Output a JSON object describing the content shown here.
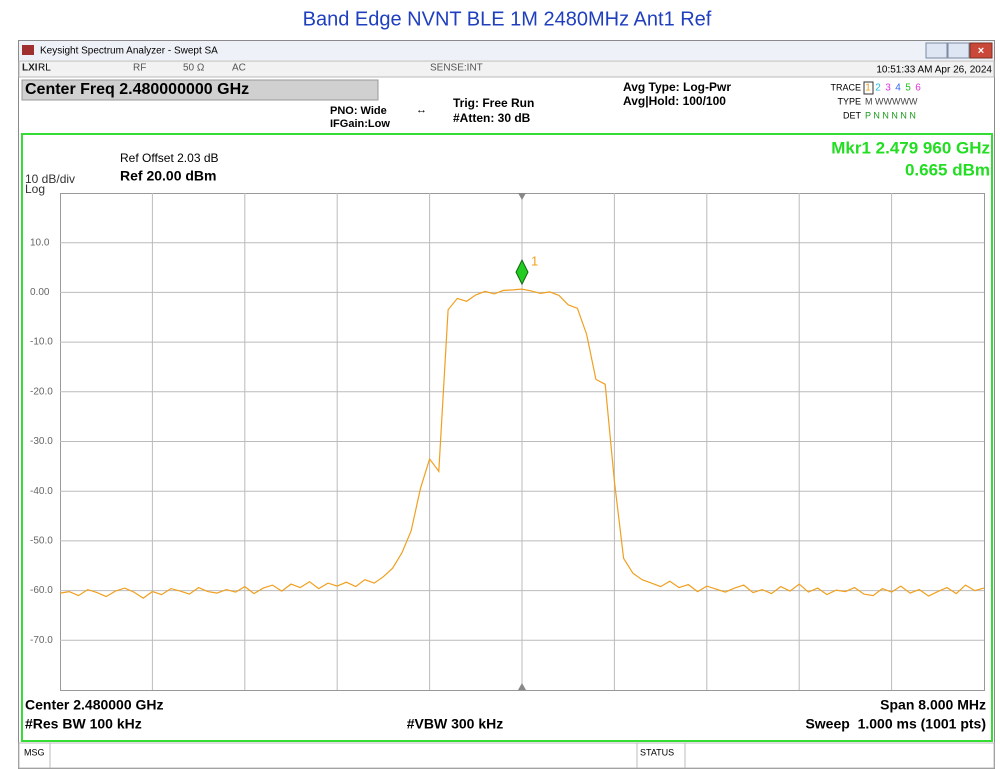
{
  "title": "Band Edge NVNT BLE 1M 2480MHz Ant1 Ref",
  "window_title": "Keysight Spectrum Analyzer - Swept SA",
  "status_row": {
    "rl": "RL",
    "rf": "RF",
    "impedance": "50 Ω",
    "coupling": "AC",
    "sense": "SENSE:INT",
    "time": "10:51:33 AM Apr 26, 2024"
  },
  "header": {
    "center_freq": "Center Freq 2.480000000 GHz",
    "pno": "PNO: Wide",
    "ifgain": "IFGain:Low",
    "trig": "Trig: Free Run",
    "atten": "#Atten: 30 dB",
    "avg_type": "Avg Type: Log-Pwr",
    "avg_hold": "Avg|Hold: 100/100",
    "trace_label": "TRACE",
    "trace_numbers": [
      "1",
      "2",
      "3",
      "4",
      "5",
      "6"
    ],
    "type_label": "TYPE",
    "type_value": "M WWWWW",
    "det_label": "DET",
    "det_value": "P N N N N N"
  },
  "screen": {
    "ref_offset": "Ref Offset 2.03 dB",
    "scale": "10 dB/div",
    "ref_level": "Ref 20.00 dBm",
    "log": "Log",
    "marker_freq": "Mkr1 2.479 960 GHz",
    "marker_level": "0.665 dBm",
    "marker_label": "1"
  },
  "trace": {
    "color": "#f0a020",
    "ylim": [
      -80,
      20
    ],
    "yticks": [
      {
        "value": 10,
        "label": "10.0"
      },
      {
        "value": 0,
        "label": "0.00"
      },
      {
        "value": -10,
        "label": "-10.0"
      },
      {
        "value": -20,
        "label": "-20.0"
      },
      {
        "value": -30,
        "label": "-30.0"
      },
      {
        "value": -40,
        "label": "-40.0"
      },
      {
        "value": -50,
        "label": "-50.0"
      },
      {
        "value": -60,
        "label": "-60.0"
      },
      {
        "value": -70,
        "label": "-70.0"
      }
    ],
    "marker_index": 50,
    "values": [
      -60.5,
      -60.2,
      -61,
      -59.8,
      -60.4,
      -61.2,
      -60.1,
      -59.5,
      -60.3,
      -61.5,
      -60.2,
      -60.8,
      -59.6,
      -60.1,
      -60.7,
      -59.4,
      -60.2,
      -60.5,
      -59.8,
      -60.3,
      -59.2,
      -60.6,
      -59.5,
      -58.9,
      -60.1,
      -58.7,
      -59.4,
      -58.2,
      -59.6,
      -58.5,
      -59.1,
      -58.3,
      -59.2,
      -57.8,
      -58.5,
      -57.2,
      -55.5,
      -52.4,
      -48.0,
      -39.5,
      -33.5,
      -36.0,
      -3.5,
      -1.2,
      -1.8,
      -0.5,
      0.2,
      -0.3,
      0.4,
      0.5,
      0.665,
      0.3,
      -0.2,
      0.1,
      -0.6,
      -2.5,
      -3.2,
      -8.5,
      -17.5,
      -18.5,
      -38.0,
      -53.5,
      -56.5,
      -57.8,
      -58.5,
      -59.2,
      -58.1,
      -59.4,
      -58.8,
      -60.2,
      -59.1,
      -59.7,
      -60.3,
      -59.5,
      -58.9,
      -60.4,
      -59.8,
      -60.6,
      -59.2,
      -60.1,
      -58.7,
      -60.3,
      -59.5,
      -60.8,
      -59.9,
      -60.2,
      -59.4,
      -60.7,
      -61.0,
      -59.6,
      -60.3,
      -59.1,
      -60.5,
      -59.8,
      -61.1,
      -60.2,
      -59.4,
      -60.6,
      -58.9,
      -60.0,
      -59.5
    ]
  },
  "footer": {
    "center": "Center 2.480000 GHz",
    "rbw": "#Res BW 100 kHz",
    "vbw": "#VBW 300 kHz",
    "span": "Span 8.000 MHz",
    "sweep": "Sweep  1.000 ms (1001 pts)"
  },
  "status_bar": {
    "msg": "MSG",
    "status": "STATUS"
  }
}
